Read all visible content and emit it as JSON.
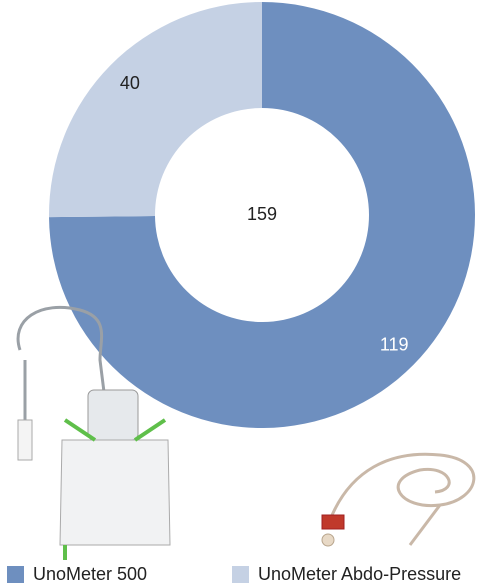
{
  "chart_data": {
    "type": "donut",
    "categories": [
      "UnoMeter 500",
      "UnoMeter Abdo-Pressure"
    ],
    "values": [
      119,
      40
    ],
    "colors": [
      "#6e8fbf",
      "#c5d1e4"
    ],
    "total": 159
  }
}
